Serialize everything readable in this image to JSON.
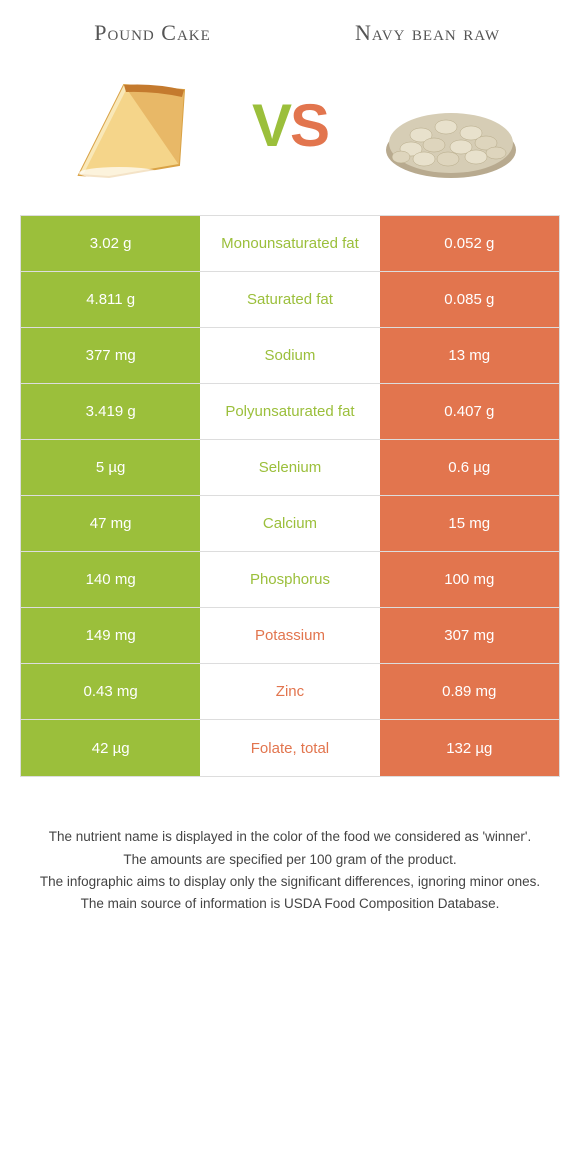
{
  "header": {
    "left_title": "Pound Cake",
    "right_title": "Navy bean raw"
  },
  "vs": {
    "v": "V",
    "s": "S"
  },
  "colors": {
    "left": "#9bbf3b",
    "right": "#e2754e",
    "background": "#ffffff",
    "border": "#dddddd"
  },
  "table": {
    "rows": [
      {
        "left": "3.02 g",
        "label": "Monounsaturated fat",
        "right": "0.052 g",
        "winner": "green"
      },
      {
        "left": "4.811 g",
        "label": "Saturated fat",
        "right": "0.085 g",
        "winner": "green"
      },
      {
        "left": "377 mg",
        "label": "Sodium",
        "right": "13 mg",
        "winner": "green"
      },
      {
        "left": "3.419 g",
        "label": "Polyunsaturated fat",
        "right": "0.407 g",
        "winner": "green"
      },
      {
        "left": "5 µg",
        "label": "Selenium",
        "right": "0.6 µg",
        "winner": "green"
      },
      {
        "left": "47 mg",
        "label": "Calcium",
        "right": "15 mg",
        "winner": "green"
      },
      {
        "left": "140 mg",
        "label": "Phosphorus",
        "right": "100 mg",
        "winner": "green"
      },
      {
        "left": "149 mg",
        "label": "Potassium",
        "right": "307 mg",
        "winner": "orange"
      },
      {
        "left": "0.43 mg",
        "label": "Zinc",
        "right": "0.89 mg",
        "winner": "orange"
      },
      {
        "left": "42 µg",
        "label": "Folate, total",
        "right": "132 µg",
        "winner": "orange"
      }
    ]
  },
  "footer": {
    "line1": "The nutrient name is displayed in the color of the food we considered as 'winner'.",
    "line2": "The amounts are specified per 100 gram of the product.",
    "line3": "The infographic aims to display only the significant differences, ignoring minor ones.",
    "line4": "The main source of information is USDA Food Composition Database."
  }
}
